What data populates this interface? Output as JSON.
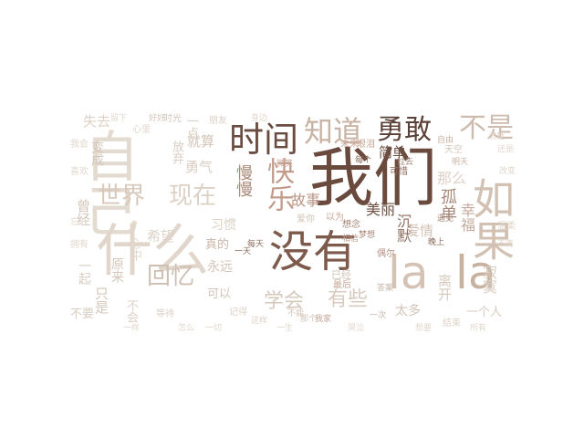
{
  "palette": {
    "dark": "#5a4036",
    "brown": "#8a6a5a",
    "rose": "#c7a698",
    "tan": "#d6c5b6",
    "light": "#e6ddd4",
    "faint": "#efe9e3"
  },
  "words": [
    "自己",
    "我们",
    "什么",
    "没有",
    "la",
    "la",
    "如果",
    "不是",
    "时间",
    "知道",
    "勇敢",
    "快乐",
    "世界",
    "现在",
    "回忆",
    "学会",
    "有些",
    "美丽",
    "孤单",
    "幸福",
    "简单",
    "那么",
    "沉默",
    "爱情",
    "慢慢",
    "寂寞",
    "故事",
    "离开",
    "太多",
    "一个人",
    "希望",
    "曾经",
    "变成",
    "只是",
    "就算",
    "失去",
    "勇气",
    "永远",
    "真的",
    "可以",
    "不会",
    "习惯",
    "原来",
    "一起",
    "放弃",
    "一点",
    "已经",
    "心中",
    "不要",
    "结束",
    "未来",
    "天空",
    "偶尔",
    "可惜",
    "一天",
    "想念",
    "朋友",
    "每天",
    "眼泪",
    "爱你",
    "心里",
    "晚上",
    "记得",
    "一次",
    "等待",
    "时光",
    "好好",
    "温柔",
    "以为",
    "不能",
    "这样",
    "我会",
    "喜欢",
    "拥有",
    "相信",
    "自由",
    "梦想",
    "最后",
    "明天",
    "过去",
    "每个",
    "那个",
    "我家",
    "清楚",
    "还是",
    "所有",
    "一样",
    "怎么",
    "一切",
    "一生",
    "哭泣",
    "想要",
    "改变",
    "不再",
    "留下",
    "身边",
    "微笑",
    "忘记",
    "遇见",
    "答案"
  ]
}
